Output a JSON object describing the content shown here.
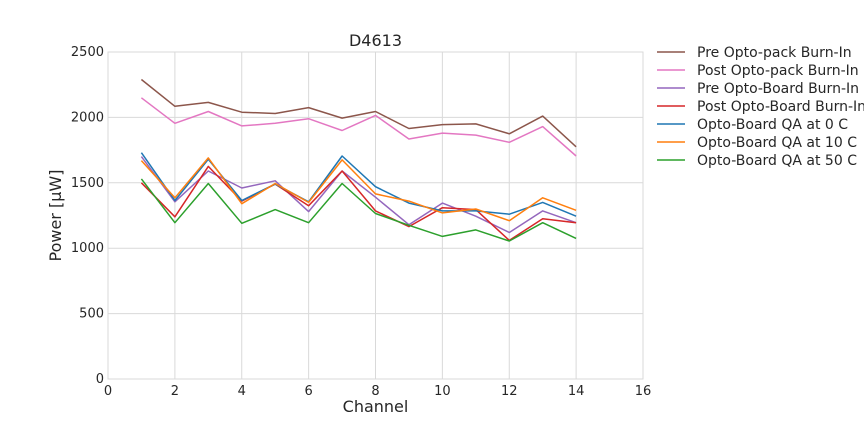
{
  "chart_data": {
    "type": "line",
    "title": "D4613",
    "xlabel": "Channel",
    "ylabel": "Power [µW]",
    "xlim": [
      0,
      16
    ],
    "ylim": [
      0,
      2500
    ],
    "xticks": [
      0,
      2,
      4,
      6,
      8,
      10,
      12,
      14,
      16
    ],
    "yticks": [
      0,
      500,
      1000,
      1500,
      2000,
      2500
    ],
    "grid": true,
    "legend_position": "outside-right",
    "x": [
      1,
      2,
      3,
      4,
      5,
      6,
      7,
      8,
      9,
      10,
      11,
      12,
      13,
      14
    ],
    "series": [
      {
        "name": "Pre Opto-pack Burn-In",
        "color": "#8c564b",
        "values": [
          2290,
          2085,
          2115,
          2040,
          2030,
          2075,
          1995,
          2045,
          1915,
          1945,
          1950,
          1875,
          2010,
          1775
        ]
      },
      {
        "name": "Post Opto-pack Burn-In",
        "color": "#e377c2",
        "values": [
          2150,
          1955,
          2045,
          1935,
          1955,
          1990,
          1900,
          2015,
          1835,
          1880,
          1865,
          1810,
          1930,
          1705
        ]
      },
      {
        "name": "Pre Opto-Board Burn-In",
        "color": "#9467bd",
        "values": [
          1700,
          1355,
          1590,
          1460,
          1515,
          1280,
          1590,
          1390,
          1180,
          1345,
          1245,
          1120,
          1285,
          1195
        ]
      },
      {
        "name": "Post Opto-Board Burn-In",
        "color": "#d62728",
        "values": [
          1500,
          1240,
          1625,
          1360,
          1490,
          1325,
          1590,
          1285,
          1165,
          1310,
          1295,
          1060,
          1225,
          1195
        ]
      },
      {
        "name": "Opto-Board QA at 0 C",
        "color": "#1f77b4",
        "values": [
          1730,
          1365,
          1680,
          1365,
          1490,
          1355,
          1705,
          1470,
          1345,
          1285,
          1285,
          1260,
          1350,
          1245
        ]
      },
      {
        "name": "Opto-Board QA at 10 C",
        "color": "#ff7f0e",
        "values": [
          1670,
          1385,
          1690,
          1340,
          1495,
          1350,
          1675,
          1415,
          1360,
          1270,
          1300,
          1210,
          1385,
          1290
        ]
      },
      {
        "name": "Opto-Board QA at 50 C",
        "color": "#2ca02c",
        "values": [
          1530,
          1195,
          1495,
          1190,
          1295,
          1195,
          1495,
          1265,
          1175,
          1090,
          1140,
          1055,
          1195,
          1075
        ]
      }
    ]
  }
}
